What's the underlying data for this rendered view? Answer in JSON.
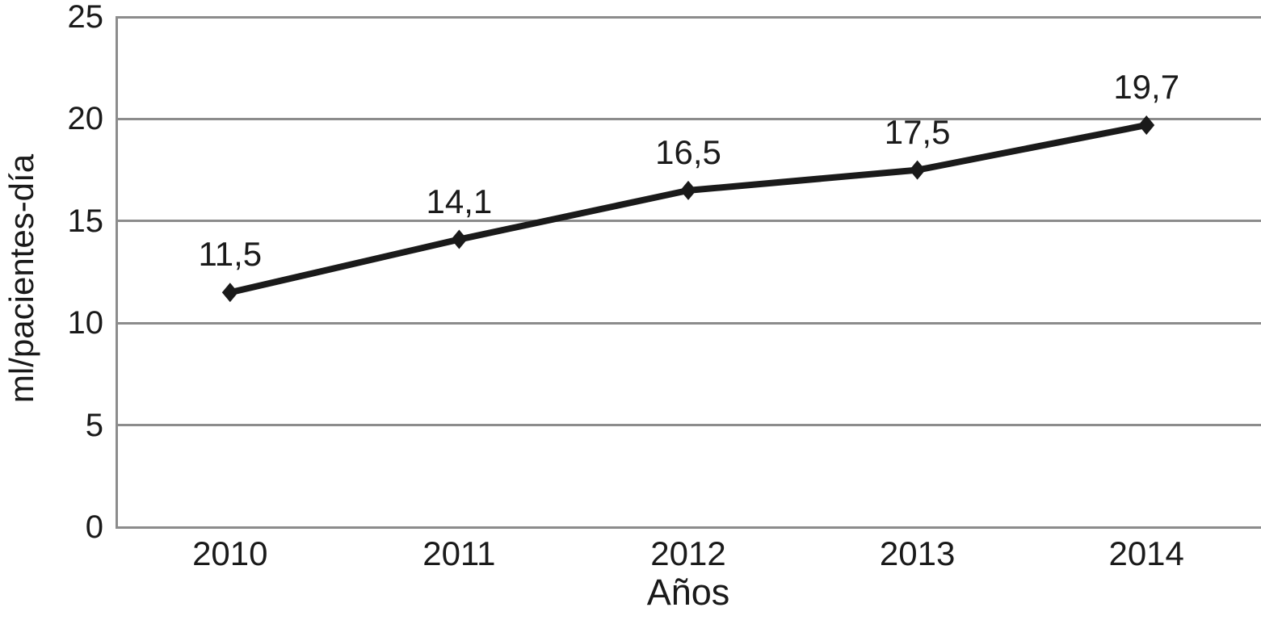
{
  "chart_data": {
    "type": "line",
    "title": "",
    "categories": [
      "2010",
      "2011",
      "2012",
      "2013",
      "2014"
    ],
    "series": [
      {
        "name": "ml/pacientes-dia",
        "values": [
          11.5,
          14.1,
          16.5,
          17.5,
          19.7
        ],
        "point_labels": [
          "11,5",
          "14,1",
          "16,5",
          "17,5",
          "19,7"
        ]
      }
    ],
    "xlabel": "Años",
    "ylabel": "ml/pacientes-día",
    "ylim": [
      0,
      25
    ],
    "y_tick_values": [
      0,
      5,
      10,
      15,
      20,
      25
    ],
    "y_tick_labels": [
      "0",
      "5",
      "10",
      "15",
      "20",
      "25"
    ],
    "grid": "horizontal-only",
    "legend_position": "none",
    "line_color": "#1a1a1a",
    "grid_color": "#8c8c8c",
    "text_color": "#1a1a1a",
    "marker": "diamond"
  }
}
